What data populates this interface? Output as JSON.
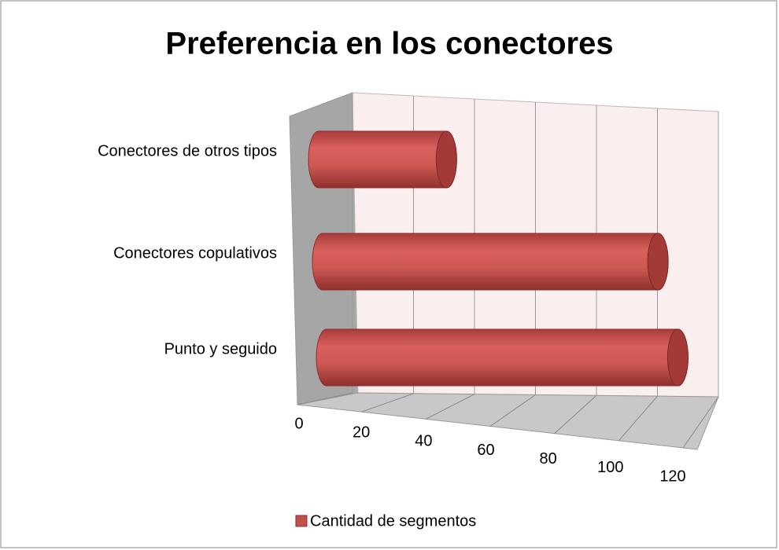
{
  "chart_data": {
    "type": "bar3d",
    "orientation": "horizontal",
    "title": "Preferencia en los conectores",
    "categories": [
      "Punto y seguido",
      "Conectores copulativos",
      "Conectores de otros tipos"
    ],
    "series": [
      {
        "name": "Cantidad de segmentos",
        "color": "#c0504d",
        "values": [
          110,
          105,
          40
        ]
      }
    ],
    "xlim": [
      0,
      120
    ],
    "xticks": [
      0,
      20,
      40,
      60,
      80,
      100,
      120
    ],
    "grid": true,
    "legend": "bottom"
  }
}
